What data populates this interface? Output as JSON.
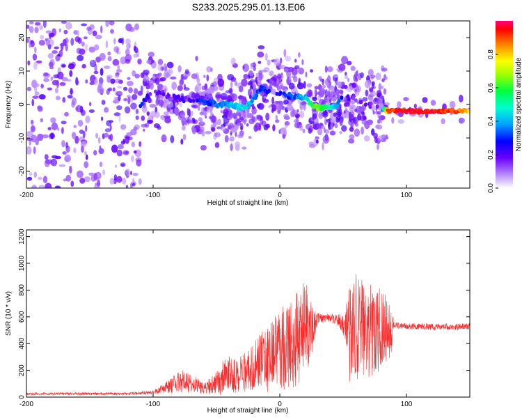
{
  "title": "S233.2025.295.01.13.E06",
  "chart_data": [
    {
      "type": "heatmap",
      "xlabel": "Height of straight line (km)",
      "ylabel": "Frequency (Hz)",
      "xlim": [
        -200,
        150
      ],
      "ylim": [
        -25,
        25
      ],
      "x_ticks": [
        -200,
        -100,
        0,
        100
      ],
      "y_ticks": [
        -20,
        -10,
        0,
        10,
        20
      ],
      "colorbar": {
        "label": "Normalized spectral amplitude",
        "range": [
          0,
          1
        ],
        "ticks": [
          0.0,
          0.2,
          0.4,
          0.6,
          0.8
        ]
      },
      "ridge": {
        "x": [
          -110,
          -100,
          -90,
          -80,
          -70,
          -60,
          -50,
          -40,
          -30,
          -25,
          -20,
          -15,
          -10,
          0,
          20,
          25,
          30,
          35,
          40,
          45,
          50,
          60,
          70,
          80,
          85,
          100,
          120,
          140,
          150
        ],
        "frequency": [
          0,
          4,
          3,
          2,
          1,
          1,
          0,
          0,
          -1,
          0,
          2,
          5,
          4,
          3,
          2,
          0,
          -1,
          -1,
          -1,
          0,
          3,
          1,
          0,
          -1,
          -2,
          -2,
          -2,
          -2,
          -2
        ],
        "amplitude": [
          0.3,
          0.15,
          0.2,
          0.2,
          0.2,
          0.3,
          0.35,
          0.4,
          0.45,
          0.45,
          0.35,
          0.3,
          0.3,
          0.25,
          0.4,
          0.55,
          0.65,
          0.6,
          0.5,
          0.4,
          0.2,
          0.15,
          0.15,
          0.2,
          0.9,
          0.95,
          0.95,
          0.9,
          0.8
        ]
      }
    },
    {
      "type": "line",
      "xlabel": "Height of straight line (km)",
      "ylabel": "SNR (10 * v/v)",
      "xlim": [
        -200,
        150
      ],
      "ylim": [
        0,
        1250
      ],
      "x_ticks": [
        -200,
        -100,
        0,
        100
      ],
      "y_ticks": [
        0,
        200,
        400,
        600,
        800,
        1000,
        1200
      ],
      "series": [
        {
          "color": "#ff2a2a",
          "x": [
            -200,
            -150,
            -120,
            -100,
            -90,
            -80,
            -75,
            -70,
            -65,
            -60,
            -55,
            -50,
            -45,
            -40,
            -35,
            -30,
            -25,
            -20,
            -15,
            -10,
            -5,
            0,
            5,
            10,
            15,
            20,
            25,
            30,
            40,
            45,
            50,
            55,
            60,
            65,
            70,
            75,
            80,
            85,
            88,
            90,
            100,
            110,
            120,
            130,
            140,
            150
          ],
          "mean": [
            25,
            25,
            25,
            35,
            70,
            110,
            120,
            100,
            90,
            60,
            80,
            110,
            160,
            180,
            150,
            170,
            200,
            230,
            260,
            300,
            320,
            340,
            380,
            400,
            450,
            480,
            500,
            590,
            590,
            580,
            550,
            500,
            520,
            500,
            510,
            500,
            490,
            500,
            500,
            540,
            530,
            530,
            525,
            525,
            525,
            530
          ],
          "spread": [
            10,
            10,
            10,
            15,
            50,
            80,
            90,
            70,
            60,
            40,
            70,
            100,
            140,
            130,
            130,
            140,
            160,
            180,
            220,
            260,
            300,
            320,
            320,
            340,
            380,
            400,
            200,
            40,
            40,
            40,
            80,
            400,
            450,
            420,
            400,
            360,
            320,
            250,
            200,
            25,
            25,
            25,
            25,
            25,
            25,
            25
          ]
        }
      ]
    }
  ]
}
